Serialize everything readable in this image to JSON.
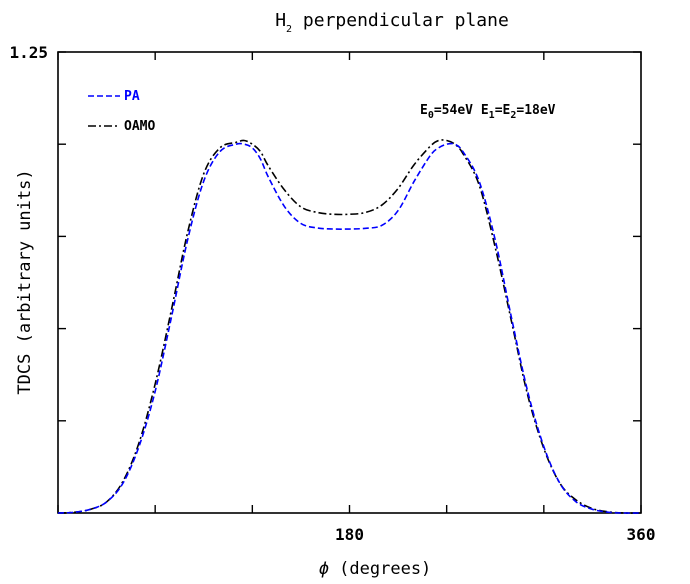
{
  "chart_data": {
    "type": "line",
    "title": {
      "main": "H",
      "sub": "2",
      "rest": " perpendicular plane"
    },
    "xlabel": {
      "symbol": "ϕ",
      "text": " (degrees)"
    },
    "ylabel": "TDCS (arbitrary units)",
    "xlim": [
      0,
      360
    ],
    "ylim": [
      0,
      1.25
    ],
    "x_ticks": [
      0,
      60,
      120,
      180,
      240,
      300,
      360
    ],
    "x_tick_labels": [
      {
        "value": 180,
        "label": "180"
      },
      {
        "value": 360,
        "label": "360"
      }
    ],
    "y_ticks": [
      0,
      0.25,
      0.5,
      0.75,
      1.0,
      1.25
    ],
    "y_tick_labels": [
      {
        "value": 1.25,
        "label": "1.25"
      }
    ],
    "annotation": {
      "parts": [
        {
          "t": "E"
        },
        {
          "t": "0",
          "sub": true
        },
        {
          "t": "=54eV E"
        },
        {
          "t": "1",
          "sub": true
        },
        {
          "t": "=E"
        },
        {
          "t": "2",
          "sub": true
        },
        {
          "t": "=18eV"
        }
      ]
    },
    "legend_position": "top-left",
    "series": [
      {
        "name": "PA",
        "color": "#0000ff",
        "dash": "dashed",
        "x": [
          0,
          10,
          20,
          30,
          40,
          50,
          60,
          70,
          80,
          90,
          100,
          110,
          115,
          120,
          125,
          130,
          140,
          150,
          160,
          170,
          180,
          190,
          200,
          210,
          220,
          230,
          235,
          240,
          245,
          250,
          260,
          270,
          280,
          290,
          300,
          310,
          320,
          330,
          340,
          350,
          360
        ],
        "y": [
          0.0,
          0.002,
          0.01,
          0.03,
          0.08,
          0.18,
          0.33,
          0.53,
          0.74,
          0.9,
          0.98,
          1.0,
          1.0,
          0.99,
          0.96,
          0.91,
          0.83,
          0.785,
          0.773,
          0.77,
          0.77,
          0.772,
          0.78,
          0.82,
          0.9,
          0.97,
          0.99,
          1.0,
          1.0,
          0.98,
          0.9,
          0.74,
          0.53,
          0.33,
          0.18,
          0.08,
          0.03,
          0.01,
          0.002,
          0.0,
          0.0
        ]
      },
      {
        "name": "OAMO",
        "color": "#000000",
        "dash": "dashdot",
        "x": [
          0,
          10,
          20,
          30,
          40,
          50,
          60,
          70,
          80,
          90,
          100,
          110,
          115,
          120,
          125,
          130,
          140,
          150,
          160,
          170,
          180,
          190,
          200,
          210,
          220,
          230,
          235,
          240,
          245,
          250,
          260,
          270,
          280,
          290,
          300,
          310,
          320,
          330,
          340,
          350,
          360
        ],
        "y": [
          0.0,
          0.002,
          0.01,
          0.03,
          0.085,
          0.19,
          0.35,
          0.55,
          0.76,
          0.92,
          0.99,
          1.005,
          1.01,
          1.0,
          0.98,
          0.94,
          0.875,
          0.83,
          0.815,
          0.81,
          0.81,
          0.815,
          0.835,
          0.88,
          0.945,
          0.995,
          1.01,
          1.01,
          1.0,
          0.975,
          0.89,
          0.72,
          0.52,
          0.32,
          0.175,
          0.08,
          0.035,
          0.012,
          0.003,
          0.0,
          0.0
        ]
      }
    ]
  }
}
